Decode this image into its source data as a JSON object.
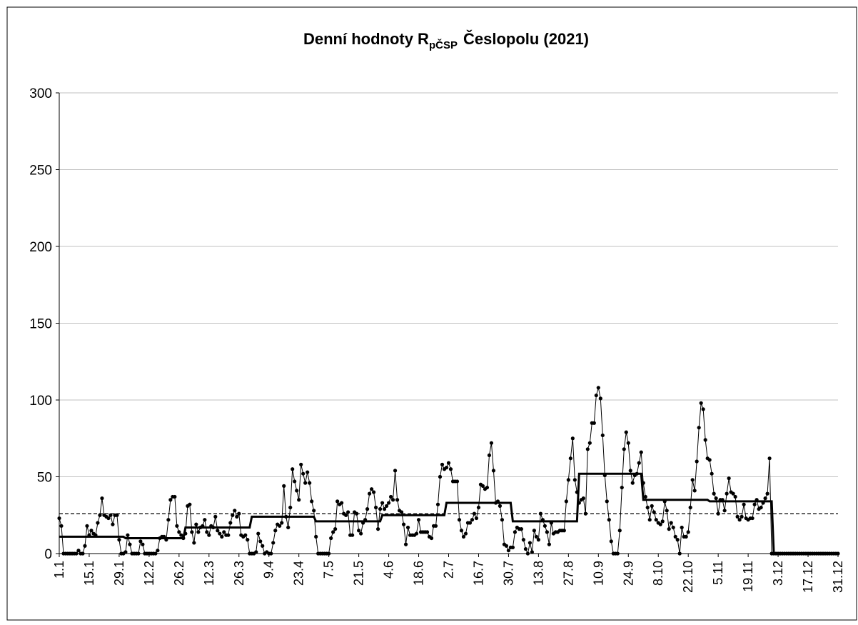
{
  "chart_data": {
    "type": "line",
    "title": "Denní hodnoty R",
    "title_sub": "pČSP",
    "title_rest": "Česlopolu (2021)",
    "categories": [
      "1.1",
      null,
      null,
      null,
      null,
      null,
      null,
      null,
      null,
      null,
      null,
      null,
      null,
      null,
      "15.1",
      null,
      null,
      null,
      null,
      null,
      null,
      null,
      null,
      null,
      null,
      null,
      null,
      null,
      "29.1",
      null,
      null,
      null,
      null,
      null,
      null,
      null,
      null,
      null,
      null,
      null,
      null,
      null,
      "12.2",
      null,
      null,
      null,
      null,
      null,
      null,
      null,
      null,
      null,
      null,
      null,
      null,
      null,
      "26.2",
      null,
      null,
      null,
      null,
      null,
      null,
      null,
      null,
      null,
      null,
      null,
      null,
      null,
      "12.3",
      null,
      null,
      null,
      null,
      null,
      null,
      null,
      null,
      null,
      null,
      null,
      null,
      null,
      "26.3",
      null,
      null,
      null,
      null,
      null,
      null,
      null,
      null,
      null,
      null,
      null,
      null,
      null,
      "9.4",
      null,
      null,
      null,
      null,
      null,
      null,
      null,
      null,
      null,
      null,
      null,
      null,
      null,
      "23.4",
      null,
      null,
      null,
      null,
      null,
      null,
      null,
      null,
      null,
      null,
      null,
      null,
      null,
      "7.5",
      null,
      null,
      null,
      null,
      null,
      null,
      null,
      null,
      null,
      null,
      null,
      null,
      null,
      "21.5",
      null,
      null,
      null,
      null,
      null,
      null,
      null,
      null,
      null,
      null,
      null,
      null,
      null,
      "4.6",
      null,
      null,
      null,
      null,
      null,
      null,
      null,
      null,
      null,
      null,
      null,
      null,
      null,
      "18.6",
      null,
      null,
      null,
      null,
      null,
      null,
      null,
      null,
      null,
      null,
      null,
      null,
      null,
      "2.7",
      null,
      null,
      null,
      null,
      null,
      null,
      null,
      null,
      null,
      null,
      null,
      null,
      null,
      "16.7",
      null,
      null,
      null,
      null,
      null,
      null,
      null,
      null,
      null,
      null,
      null,
      null,
      null,
      "30.7",
      null,
      null,
      null,
      null,
      null,
      null,
      null,
      null,
      null,
      null,
      null,
      null,
      null,
      "13.8",
      null,
      null,
      null,
      null,
      null,
      null,
      null,
      null,
      null,
      null,
      null,
      null,
      null,
      "27.8",
      null,
      null,
      null,
      null,
      null,
      null,
      null,
      null,
      null,
      null,
      null,
      null,
      null,
      "10.9",
      null,
      null,
      null,
      null,
      null,
      null,
      null,
      null,
      null,
      null,
      null,
      null,
      null,
      "24.9",
      null,
      null,
      null,
      null,
      null,
      null,
      null,
      null,
      null,
      null,
      null,
      null,
      null,
      "8.10",
      null,
      null,
      null,
      null,
      null,
      null,
      null,
      null,
      null,
      null,
      null,
      null,
      null,
      "22.10",
      null,
      null,
      null,
      null,
      null,
      null,
      null,
      null,
      null,
      null,
      null,
      null,
      null,
      "5.11",
      null,
      null,
      null,
      null,
      null,
      null,
      null,
      null,
      null,
      null,
      null,
      null,
      null,
      "19.11",
      null,
      null,
      null,
      null,
      null,
      null,
      null,
      null,
      null,
      null,
      null,
      null,
      null,
      "3.12",
      null,
      null,
      null,
      null,
      null,
      null,
      null,
      null,
      null,
      null,
      null,
      null,
      null,
      "17.12",
      null,
      null,
      null,
      null,
      null,
      null,
      null,
      null,
      null,
      null,
      null,
      null,
      null,
      "31.12"
    ],
    "series": [
      {
        "color": "#000000",
        "style": "points",
        "values": [
          23,
          18,
          0,
          0,
          0,
          0,
          0,
          0,
          0,
          2,
          0,
          0,
          5,
          18,
          12,
          15,
          13,
          12,
          20,
          25,
          36,
          25,
          24,
          23,
          25,
          19,
          25,
          25,
          9,
          0,
          0,
          1,
          12,
          6,
          0,
          0,
          0,
          0,
          8,
          6,
          0,
          0,
          0,
          0,
          0,
          0,
          2,
          10,
          11,
          11,
          9,
          22,
          35,
          37,
          37,
          18,
          14,
          12,
          10,
          13,
          31,
          32,
          14,
          7,
          19,
          14,
          17,
          18,
          22,
          14,
          12,
          18,
          17,
          24,
          15,
          13,
          11,
          14,
          12,
          12,
          20,
          25,
          28,
          24,
          26,
          12,
          11,
          12,
          9,
          0,
          0,
          0,
          1,
          13,
          8,
          5,
          0,
          1,
          0,
          0,
          7,
          15,
          19,
          18,
          20,
          44,
          24,
          17,
          30,
          55,
          47,
          41,
          35,
          58,
          52,
          46,
          53,
          46,
          34,
          28,
          11,
          0,
          0,
          0,
          0,
          0,
          0,
          10,
          14,
          16,
          34,
          32,
          33,
          26,
          25,
          27,
          12,
          12,
          27,
          26,
          15,
          13,
          20,
          22,
          29,
          39,
          42,
          40,
          30,
          16,
          29,
          33,
          29,
          31,
          33,
          37,
          35,
          54,
          35,
          28,
          27,
          19,
          6,
          17,
          12,
          12,
          12,
          13,
          22,
          14,
          14,
          14,
          14,
          11,
          10,
          18,
          18,
          32,
          50,
          58,
          55,
          56,
          59,
          55,
          47,
          47,
          47,
          22,
          15,
          11,
          13,
          20,
          20,
          22,
          26,
          23,
          30,
          45,
          44,
          42,
          43,
          64,
          72,
          54,
          33,
          34,
          31,
          22,
          6,
          5,
          2,
          4,
          4,
          14,
          17,
          16,
          16,
          9,
          3,
          0,
          7,
          1,
          15,
          11,
          9,
          26,
          22,
          18,
          14,
          6,
          20,
          13,
          14,
          14,
          15,
          15,
          15,
          34,
          48,
          62,
          75,
          48,
          40,
          33,
          35,
          36,
          26,
          68,
          72,
          85,
          85,
          103,
          108,
          101,
          77,
          51,
          34,
          22,
          8,
          0,
          0,
          0,
          15,
          43,
          68,
          79,
          72,
          54,
          46,
          51,
          52,
          59,
          66,
          46,
          37,
          30,
          22,
          31,
          27,
          22,
          20,
          19,
          21,
          34,
          28,
          16,
          20,
          17,
          11,
          9,
          0,
          17,
          11,
          11,
          14,
          30,
          48,
          41,
          60,
          82,
          98,
          94,
          74,
          62,
          61,
          52,
          39,
          36,
          26,
          35,
          35,
          28,
          39,
          49,
          40,
          39,
          37,
          24,
          22,
          24,
          32,
          23,
          22,
          23,
          23,
          32,
          35,
          29,
          30,
          33,
          36,
          39,
          62,
          0,
          0,
          0,
          0,
          0,
          0,
          0,
          0,
          0,
          0,
          0,
          0,
          0,
          0,
          0,
          0,
          0,
          0,
          0,
          0,
          0,
          0,
          0,
          0,
          0,
          0,
          0,
          0,
          0,
          0,
          0,
          0
        ]
      },
      {
        "color": "#000000",
        "style": "thick",
        "values": [
          11,
          11,
          11,
          11,
          11,
          11,
          11,
          11,
          11,
          11,
          11,
          11,
          11,
          11,
          11,
          11,
          11,
          11,
          11,
          11,
          11,
          11,
          11,
          11,
          11,
          11,
          11,
          11,
          11,
          11,
          11,
          10,
          10,
          10,
          10,
          10,
          10,
          10,
          10,
          10,
          10,
          10,
          10,
          10,
          10,
          10,
          10,
          10,
          10,
          10,
          10,
          10,
          10,
          10,
          10,
          10,
          10,
          10,
          10,
          17,
          17,
          17,
          17,
          17,
          17,
          17,
          17,
          17,
          17,
          17,
          17,
          17,
          17,
          17,
          17,
          17,
          17,
          17,
          17,
          17,
          17,
          17,
          17,
          17,
          17,
          17,
          17,
          17,
          17,
          17,
          24,
          24,
          24,
          24,
          24,
          24,
          24,
          24,
          24,
          24,
          24,
          24,
          24,
          24,
          24,
          24,
          24,
          24,
          24,
          24,
          24,
          24,
          24,
          24,
          24,
          24,
          24,
          24,
          24,
          24,
          21,
          21,
          21,
          21,
          21,
          21,
          21,
          21,
          21,
          21,
          21,
          21,
          21,
          21,
          21,
          21,
          21,
          21,
          21,
          21,
          21,
          21,
          21,
          21,
          21,
          21,
          21,
          21,
          21,
          21,
          21,
          25,
          25,
          25,
          25,
          25,
          25,
          25,
          25,
          25,
          25,
          25,
          25,
          25,
          25,
          25,
          25,
          25,
          25,
          25,
          25,
          25,
          25,
          25,
          25,
          25,
          25,
          25,
          25,
          25,
          25,
          33,
          33,
          33,
          33,
          33,
          33,
          33,
          33,
          33,
          33,
          33,
          33,
          33,
          33,
          33,
          33,
          33,
          33,
          33,
          33,
          33,
          33,
          33,
          33,
          33,
          33,
          33,
          33,
          33,
          33,
          33,
          21,
          21,
          21,
          21,
          21,
          21,
          21,
          21,
          21,
          21,
          21,
          21,
          21,
          21,
          21,
          21,
          21,
          21,
          21,
          21,
          21,
          21,
          21,
          21,
          21,
          21,
          21,
          21,
          21,
          21,
          21,
          52,
          52,
          52,
          52,
          52,
          52,
          52,
          52,
          52,
          52,
          52,
          52,
          52,
          52,
          52,
          52,
          52,
          52,
          52,
          52,
          52,
          52,
          52,
          52,
          52,
          52,
          52,
          52,
          52,
          52,
          35,
          35,
          35,
          35,
          35,
          35,
          35,
          35,
          35,
          35,
          35,
          35,
          35,
          35,
          35,
          35,
          35,
          35,
          35,
          35,
          35,
          35,
          35,
          35,
          35,
          35,
          35,
          35,
          35,
          35,
          35,
          34,
          34,
          34,
          34,
          34,
          34,
          34,
          34,
          34,
          34,
          34,
          34,
          34,
          34,
          34,
          34,
          34,
          34,
          34,
          34,
          34,
          34,
          34,
          34,
          34,
          34,
          34,
          34,
          34,
          34,
          0,
          0,
          0,
          0,
          0,
          0,
          0,
          0,
          0,
          0,
          0,
          0,
          0,
          0,
          0,
          0,
          0,
          0,
          0,
          0,
          0,
          0,
          0,
          0,
          0,
          0,
          0,
          0,
          0,
          0,
          0
        ]
      }
    ],
    "annual_mean": 26,
    "ylim": [
      0,
      300
    ],
    "yticks": [
      0,
      50,
      100,
      150,
      200,
      250,
      300
    ],
    "grid": true
  }
}
